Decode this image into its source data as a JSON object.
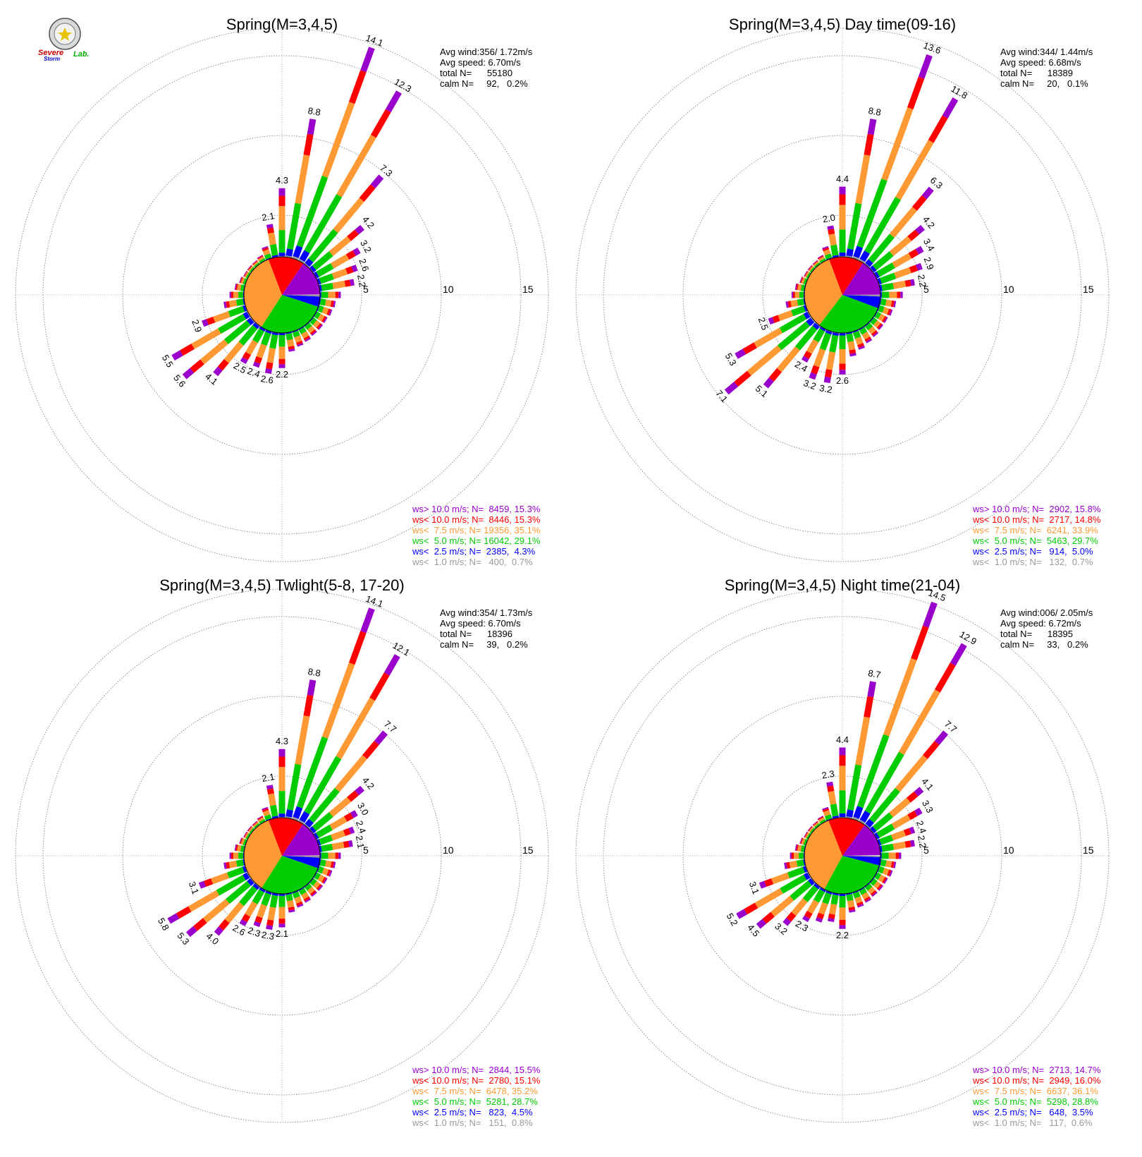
{
  "logo": {
    "text_a": "Severe",
    "text_b": "Storm",
    "text_c": "Lab."
  },
  "colors": {
    "gt10": "#9900cc",
    "lt10": "#ff0000",
    "lt7_5": "#ff9933",
    "lt5": "#00cc00",
    "lt2_5": "#0000ff",
    "lt1": "#999999"
  },
  "chart_data": [
    {
      "type": "windrose",
      "title": "Spring(M=3,4,5)",
      "ring_labels": [
        "5",
        "10",
        "15"
      ],
      "rmax": 15,
      "stats": {
        "avg_wind": "Avg wind:356/ 1.72m/s",
        "avg_speed": "Avg speed: 6.70m/s",
        "total": "total N=      55180",
        "calm": "calm N=     92,   0.2%"
      },
      "legend": [
        {
          "text": "ws> 10.0 m/s; N=  8459, 15.3%",
          "color": "gt10"
        },
        {
          "text": "ws< 10.0 m/s; N=  8446, 15.3%",
          "color": "lt10"
        },
        {
          "text": "ws<  7.5 m/s; N= 19356, 35.1%",
          "color": "lt7_5"
        },
        {
          "text": "ws<  5.0 m/s; N= 16042, 29.1%",
          "color": "lt5"
        },
        {
          "text": "ws<  2.5 m/s; N=  2385,  4.3%",
          "color": "lt2_5"
        },
        {
          "text": "ws<  1.0 m/s; N=   400,  0.7%",
          "color": "lt1"
        }
      ],
      "pie": [
        0.007,
        0.043,
        0.291,
        0.351,
        0.153,
        0.153
      ],
      "directions": [
        {
          "deg": 0,
          "total": 4.3,
          "label": "4.3"
        },
        {
          "deg": 10,
          "total": 8.8,
          "label": "8.8"
        },
        {
          "deg": 20,
          "total": 14.1,
          "label": "14.1"
        },
        {
          "deg": 30,
          "total": 12.3,
          "label": "12.3"
        },
        {
          "deg": 40,
          "total": 7.3,
          "label": "7.3"
        },
        {
          "deg": 50,
          "total": 4.2,
          "label": "4.2"
        },
        {
          "deg": 60,
          "total": 3.2,
          "label": "3.2"
        },
        {
          "deg": 70,
          "total": 2.6,
          "label": "2.6"
        },
        {
          "deg": 80,
          "total": 2.2,
          "label": "2.2"
        },
        {
          "deg": 90,
          "total": 1.3,
          "label": ""
        },
        {
          "deg": 100,
          "total": 1.0,
          "label": ""
        },
        {
          "deg": 110,
          "total": 0.9,
          "label": ""
        },
        {
          "deg": 120,
          "total": 0.8,
          "label": ""
        },
        {
          "deg": 130,
          "total": 0.8,
          "label": ""
        },
        {
          "deg": 140,
          "total": 0.8,
          "label": ""
        },
        {
          "deg": 150,
          "total": 0.9,
          "label": ""
        },
        {
          "deg": 160,
          "total": 1.0,
          "label": ""
        },
        {
          "deg": 170,
          "total": 1.2,
          "label": ""
        },
        {
          "deg": 180,
          "total": 2.2,
          "label": "2.2"
        },
        {
          "deg": 190,
          "total": 2.6,
          "label": "2.6"
        },
        {
          "deg": 200,
          "total": 2.4,
          "label": "2.4"
        },
        {
          "deg": 210,
          "total": 2.5,
          "label": "2.5"
        },
        {
          "deg": 220,
          "total": 4.1,
          "label": "4.1"
        },
        {
          "deg": 230,
          "total": 5.6,
          "label": "5.6"
        },
        {
          "deg": 240,
          "total": 5.5,
          "label": "5.5"
        },
        {
          "deg": 250,
          "total": 2.9,
          "label": "2.9"
        },
        {
          "deg": 260,
          "total": 1.3,
          "label": ""
        },
        {
          "deg": 270,
          "total": 0.9,
          "label": ""
        },
        {
          "deg": 280,
          "total": 0.6,
          "label": ""
        },
        {
          "deg": 290,
          "total": 0.4,
          "label": ""
        },
        {
          "deg": 300,
          "total": 0.3,
          "label": ""
        },
        {
          "deg": 310,
          "total": 0.3,
          "label": ""
        },
        {
          "deg": 320,
          "total": 0.3,
          "label": ""
        },
        {
          "deg": 330,
          "total": 0.4,
          "label": ""
        },
        {
          "deg": 340,
          "total": 0.8,
          "label": ""
        },
        {
          "deg": 350,
          "total": 2.1,
          "label": "2.1"
        }
      ]
    },
    {
      "type": "windrose",
      "title": "Spring(M=3,4,5) Day time(09-16)",
      "ring_labels": [
        "5",
        "10",
        "15"
      ],
      "rmax": 15,
      "stats": {
        "avg_wind": "Avg wind:344/ 1.44m/s",
        "avg_speed": "Avg speed: 6.68m/s",
        "total": "total N=      18389",
        "calm": "calm N=     20,   0.1%"
      },
      "legend": [
        {
          "text": "ws> 10.0 m/s; N=  2902, 15.8%",
          "color": "gt10"
        },
        {
          "text": "ws< 10.0 m/s; N=  2717, 14.8%",
          "color": "lt10"
        },
        {
          "text": "ws<  7.5 m/s; N=  6241, 33.9%",
          "color": "lt7_5"
        },
        {
          "text": "ws<  5.0 m/s; N=  5463, 29.7%",
          "color": "lt5"
        },
        {
          "text": "ws<  2.5 m/s; N=   914,  5.0%",
          "color": "lt2_5"
        },
        {
          "text": "ws<  1.0 m/s; N=   132,  0.7%",
          "color": "lt1"
        }
      ],
      "pie": [
        0.007,
        0.05,
        0.297,
        0.339,
        0.148,
        0.158
      ],
      "directions": [
        {
          "deg": 0,
          "total": 4.4,
          "label": "4.4"
        },
        {
          "deg": 10,
          "total": 8.8,
          "label": "8.8"
        },
        {
          "deg": 20,
          "total": 13.6,
          "label": "13.6"
        },
        {
          "deg": 30,
          "total": 11.8,
          "label": "11.8"
        },
        {
          "deg": 40,
          "total": 6.3,
          "label": "6.3"
        },
        {
          "deg": 50,
          "total": 4.2,
          "label": "4.2"
        },
        {
          "deg": 60,
          "total": 3.4,
          "label": "3.4"
        },
        {
          "deg": 70,
          "total": 2.9,
          "label": "2.9"
        },
        {
          "deg": 80,
          "total": 2.2,
          "label": "2.2"
        },
        {
          "deg": 90,
          "total": 1.4,
          "label": ""
        },
        {
          "deg": 100,
          "total": 1.0,
          "label": ""
        },
        {
          "deg": 110,
          "total": 0.9,
          "label": ""
        },
        {
          "deg": 120,
          "total": 0.8,
          "label": ""
        },
        {
          "deg": 130,
          "total": 0.8,
          "label": ""
        },
        {
          "deg": 140,
          "total": 0.9,
          "label": ""
        },
        {
          "deg": 150,
          "total": 1.0,
          "label": ""
        },
        {
          "deg": 160,
          "total": 1.2,
          "label": ""
        },
        {
          "deg": 170,
          "total": 1.5,
          "label": ""
        },
        {
          "deg": 180,
          "total": 2.6,
          "label": "2.6"
        },
        {
          "deg": 190,
          "total": 3.2,
          "label": "3.2"
        },
        {
          "deg": 200,
          "total": 3.2,
          "label": "3.2"
        },
        {
          "deg": 210,
          "total": 2.4,
          "label": "2.4"
        },
        {
          "deg": 220,
          "total": 5.1,
          "label": "5.1"
        },
        {
          "deg": 230,
          "total": 7.1,
          "label": "7.1"
        },
        {
          "deg": 240,
          "total": 5.3,
          "label": "5.3"
        },
        {
          "deg": 250,
          "total": 2.5,
          "label": "2.5"
        },
        {
          "deg": 260,
          "total": 1.2,
          "label": ""
        },
        {
          "deg": 270,
          "total": 0.8,
          "label": ""
        },
        {
          "deg": 280,
          "total": 0.6,
          "label": ""
        },
        {
          "deg": 290,
          "total": 0.4,
          "label": ""
        },
        {
          "deg": 300,
          "total": 0.3,
          "label": ""
        },
        {
          "deg": 310,
          "total": 0.3,
          "label": ""
        },
        {
          "deg": 320,
          "total": 0.3,
          "label": ""
        },
        {
          "deg": 330,
          "total": 0.4,
          "label": ""
        },
        {
          "deg": 340,
          "total": 0.8,
          "label": ""
        },
        {
          "deg": 350,
          "total": 2.0,
          "label": "2.0"
        }
      ]
    },
    {
      "type": "windrose",
      "title": "Spring(M=3,4,5) Twlight(5-8, 17-20)",
      "ring_labels": [
        "5",
        "10",
        "15"
      ],
      "rmax": 15,
      "stats": {
        "avg_wind": "Avg wind:354/ 1.73m/s",
        "avg_speed": "Avg speed: 6.70m/s",
        "total": "total N=      18396",
        "calm": "calm N=     39,   0.2%"
      },
      "legend": [
        {
          "text": "ws> 10.0 m/s; N=  2844, 15.5%",
          "color": "gt10"
        },
        {
          "text": "ws< 10.0 m/s; N=  2780, 15.1%",
          "color": "lt10"
        },
        {
          "text": "ws<  7.5 m/s; N=  6478, 35.2%",
          "color": "lt7_5"
        },
        {
          "text": "ws<  5.0 m/s; N=  5281, 28.7%",
          "color": "lt5"
        },
        {
          "text": "ws<  2.5 m/s; N=   823,  4.5%",
          "color": "lt2_5"
        },
        {
          "text": "ws<  1.0 m/s; N=   151,  0.8%",
          "color": "lt1"
        }
      ],
      "pie": [
        0.008,
        0.045,
        0.287,
        0.352,
        0.151,
        0.155
      ],
      "directions": [
        {
          "deg": 0,
          "total": 4.3,
          "label": "4.3"
        },
        {
          "deg": 10,
          "total": 8.8,
          "label": "8.8"
        },
        {
          "deg": 20,
          "total": 14.1,
          "label": "14.1"
        },
        {
          "deg": 30,
          "total": 12.1,
          "label": "12.1"
        },
        {
          "deg": 40,
          "total": 7.7,
          "label": "7.7"
        },
        {
          "deg": 50,
          "total": 4.2,
          "label": "4.2"
        },
        {
          "deg": 60,
          "total": 3.0,
          "label": "3.0"
        },
        {
          "deg": 70,
          "total": 2.4,
          "label": "2.4"
        },
        {
          "deg": 80,
          "total": 2.1,
          "label": "2.1"
        },
        {
          "deg": 90,
          "total": 1.3,
          "label": ""
        },
        {
          "deg": 100,
          "total": 1.0,
          "label": ""
        },
        {
          "deg": 110,
          "total": 0.9,
          "label": ""
        },
        {
          "deg": 120,
          "total": 0.8,
          "label": ""
        },
        {
          "deg": 130,
          "total": 0.8,
          "label": ""
        },
        {
          "deg": 140,
          "total": 0.8,
          "label": ""
        },
        {
          "deg": 150,
          "total": 0.9,
          "label": ""
        },
        {
          "deg": 160,
          "total": 1.0,
          "label": ""
        },
        {
          "deg": 170,
          "total": 1.2,
          "label": ""
        },
        {
          "deg": 180,
          "total": 2.1,
          "label": "2.1"
        },
        {
          "deg": 190,
          "total": 2.3,
          "label": "2.3"
        },
        {
          "deg": 200,
          "total": 2.3,
          "label": "2.3"
        },
        {
          "deg": 210,
          "total": 2.6,
          "label": "2.6"
        },
        {
          "deg": 220,
          "total": 4.0,
          "label": "4.0"
        },
        {
          "deg": 230,
          "total": 5.3,
          "label": "5.3"
        },
        {
          "deg": 240,
          "total": 5.8,
          "label": "5.8"
        },
        {
          "deg": 250,
          "total": 3.1,
          "label": "3.1"
        },
        {
          "deg": 260,
          "total": 1.3,
          "label": ""
        },
        {
          "deg": 270,
          "total": 0.9,
          "label": ""
        },
        {
          "deg": 280,
          "total": 0.6,
          "label": ""
        },
        {
          "deg": 290,
          "total": 0.4,
          "label": ""
        },
        {
          "deg": 300,
          "total": 0.3,
          "label": ""
        },
        {
          "deg": 310,
          "total": 0.3,
          "label": ""
        },
        {
          "deg": 320,
          "total": 0.3,
          "label": ""
        },
        {
          "deg": 330,
          "total": 0.4,
          "label": ""
        },
        {
          "deg": 340,
          "total": 0.8,
          "label": ""
        },
        {
          "deg": 350,
          "total": 2.1,
          "label": "2.1"
        }
      ]
    },
    {
      "type": "windrose",
      "title": "Spring(M=3,4,5) Night time(21-04)",
      "ring_labels": [
        "5",
        "10",
        "15"
      ],
      "rmax": 15,
      "stats": {
        "avg_wind": "Avg wind:006/ 2.05m/s",
        "avg_speed": "Avg speed: 6.72m/s",
        "total": "total N=      18395",
        "calm": "calm N=     33,   0.2%"
      },
      "legend": [
        {
          "text": "ws> 10.0 m/s; N=  2713, 14.7%",
          "color": "gt10"
        },
        {
          "text": "ws< 10.0 m/s; N=  2949, 16.0%",
          "color": "lt10"
        },
        {
          "text": "ws<  7.5 m/s; N=  6637, 36.1%",
          "color": "lt7_5"
        },
        {
          "text": "ws<  5.0 m/s; N=  5298, 28.8%",
          "color": "lt5"
        },
        {
          "text": "ws<  2.5 m/s; N=   648,  3.5%",
          "color": "lt2_5"
        },
        {
          "text": "ws<  1.0 m/s; N=   117,  0.6%",
          "color": "lt1"
        }
      ],
      "pie": [
        0.006,
        0.035,
        0.288,
        0.361,
        0.16,
        0.147
      ],
      "directions": [
        {
          "deg": 0,
          "total": 4.4,
          "label": "4.4"
        },
        {
          "deg": 10,
          "total": 8.7,
          "label": "8.7"
        },
        {
          "deg": 20,
          "total": 14.5,
          "label": "14.5"
        },
        {
          "deg": 30,
          "total": 12.9,
          "label": "12.9"
        },
        {
          "deg": 40,
          "total": 7.7,
          "label": "7.7"
        },
        {
          "deg": 50,
          "total": 4.1,
          "label": "4.1"
        },
        {
          "deg": 60,
          "total": 3.3,
          "label": "3.3"
        },
        {
          "deg": 70,
          "total": 2.4,
          "label": "2.4"
        },
        {
          "deg": 80,
          "total": 2.2,
          "label": "2.2"
        },
        {
          "deg": 90,
          "total": 1.3,
          "label": ""
        },
        {
          "deg": 100,
          "total": 1.0,
          "label": ""
        },
        {
          "deg": 110,
          "total": 0.9,
          "label": ""
        },
        {
          "deg": 120,
          "total": 0.8,
          "label": ""
        },
        {
          "deg": 130,
          "total": 0.8,
          "label": ""
        },
        {
          "deg": 140,
          "total": 0.8,
          "label": ""
        },
        {
          "deg": 150,
          "total": 0.9,
          "label": ""
        },
        {
          "deg": 160,
          "total": 1.0,
          "label": ""
        },
        {
          "deg": 170,
          "total": 1.2,
          "label": ""
        },
        {
          "deg": 180,
          "total": 2.2,
          "label": "2.2"
        },
        {
          "deg": 190,
          "total": 1.8,
          "label": ""
        },
        {
          "deg": 200,
          "total": 2.0,
          "label": ""
        },
        {
          "deg": 210,
          "total": 2.3,
          "label": "2.3"
        },
        {
          "deg": 220,
          "total": 3.2,
          "label": "3.2"
        },
        {
          "deg": 230,
          "total": 4.5,
          "label": "4.5"
        },
        {
          "deg": 240,
          "total": 5.2,
          "label": "5.2"
        },
        {
          "deg": 250,
          "total": 3.1,
          "label": "3.1"
        },
        {
          "deg": 260,
          "total": 1.3,
          "label": ""
        },
        {
          "deg": 270,
          "total": 0.9,
          "label": ""
        },
        {
          "deg": 280,
          "total": 0.6,
          "label": ""
        },
        {
          "deg": 290,
          "total": 0.4,
          "label": ""
        },
        {
          "deg": 300,
          "total": 0.3,
          "label": ""
        },
        {
          "deg": 310,
          "total": 0.3,
          "label": ""
        },
        {
          "deg": 320,
          "total": 0.3,
          "label": ""
        },
        {
          "deg": 330,
          "total": 0.4,
          "label": ""
        },
        {
          "deg": 340,
          "total": 0.8,
          "label": ""
        },
        {
          "deg": 350,
          "total": 2.3,
          "label": "2.3"
        }
      ]
    }
  ]
}
